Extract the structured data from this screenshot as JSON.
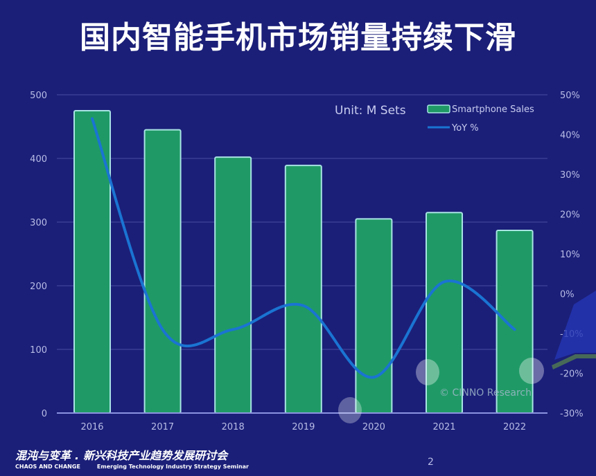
{
  "page": {
    "title": "国内智能手机市场销量持续下滑",
    "page_number": "2"
  },
  "footer": {
    "cn_left": "混沌与变革",
    "separator": ".",
    "cn_right": "新兴科技产业趋势发展研讨会",
    "en_left": "CHAOS AND CHANGE",
    "en_right": "Emerging Technology Industry Strategy Seminar"
  },
  "colors": {
    "background": "#1b1f78",
    "bar_fill": "#1f9a66",
    "bar_border": "#a9e4e4",
    "line": "#1a74d2",
    "grid": "#3a3f92"
  },
  "chart_data": {
    "type": "bar",
    "title": "国内智能手机市场销量持续下滑",
    "unit_label": "Unit: M Sets",
    "watermark": "© CINNO Research",
    "categories": [
      "2016",
      "2017",
      "2018",
      "2019",
      "2020",
      "2021",
      "2022"
    ],
    "series": [
      {
        "name": "Smartphone Sales",
        "type": "bar",
        "axis": "left",
        "values": [
          475,
          445,
          402,
          389,
          305,
          315,
          287
        ]
      },
      {
        "name": "YoY %",
        "type": "line",
        "axis": "right",
        "values": [
          44,
          -9,
          -9,
          -3,
          -21,
          3,
          -9
        ]
      }
    ],
    "left_axis": {
      "ylim": [
        0,
        500
      ],
      "ticks": [
        0,
        100,
        200,
        300,
        400,
        500
      ],
      "tick_labels": [
        "0",
        "100",
        "200",
        "300",
        "400",
        "500"
      ]
    },
    "right_axis": {
      "ylim": [
        -30,
        50
      ],
      "ticks": [
        -30,
        -20,
        -10,
        0,
        10,
        20,
        30,
        40,
        50
      ],
      "tick_labels": [
        "-30%",
        "-20%",
        "-10%",
        "0%",
        "10%",
        "20%",
        "30%",
        "40%",
        "50%"
      ]
    },
    "grid": true,
    "legend": {
      "position": "top-right",
      "entries": [
        "Smartphone Sales",
        "YoY %"
      ]
    }
  }
}
